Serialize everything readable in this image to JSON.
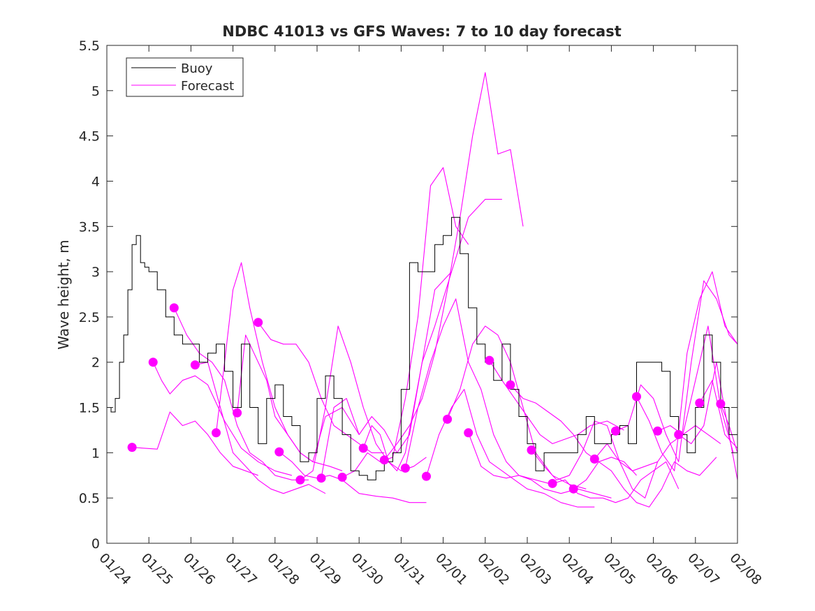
{
  "chart_data": {
    "type": "line",
    "title": "NDBC 41013 vs GFS Waves: 7 to 10 day forecast",
    "xlabel": "",
    "ylabel": "Wave height, m",
    "xlim": [
      0,
      15
    ],
    "ylim": [
      0,
      5.5
    ],
    "yticks": [
      0,
      0.5,
      1,
      1.5,
      2,
      2.5,
      3,
      3.5,
      4,
      4.5,
      5,
      5.5
    ],
    "ytick_labels": [
      "0",
      "0.5",
      "1",
      "1.5",
      "2",
      "2.5",
      "3",
      "3.5",
      "4",
      "4.5",
      "5",
      "5.5"
    ],
    "xticks": [
      0,
      1,
      2,
      3,
      4,
      5,
      6,
      7,
      8,
      9,
      10,
      11,
      12,
      13,
      14,
      15
    ],
    "xtick_labels": [
      "01/24",
      "01/25",
      "01/26",
      "01/27",
      "01/28",
      "01/29",
      "01/30",
      "01/31",
      "02/01",
      "02/02",
      "02/03",
      "02/04",
      "02/05",
      "02/06",
      "02/07",
      "02/08"
    ],
    "x_units": "days since 01/24",
    "grid": false,
    "legend": {
      "position": "top-left",
      "entries": [
        {
          "label": "Buoy",
          "color": "#000000",
          "style": "line"
        },
        {
          "label": "Forecast",
          "color": "#ff00ff",
          "style": "line"
        }
      ]
    },
    "colors": {
      "buoy": "#000000",
      "forecast": "#ff00ff"
    },
    "buoy": {
      "name": "Buoy",
      "x": [
        0,
        0.1,
        0.2,
        0.3,
        0.4,
        0.5,
        0.6,
        0.7,
        0.8,
        0.9,
        1.0,
        1.2,
        1.4,
        1.6,
        1.8,
        2.0,
        2.2,
        2.4,
        2.6,
        2.8,
        3.0,
        3.2,
        3.4,
        3.6,
        3.8,
        4.0,
        4.2,
        4.4,
        4.6,
        4.8,
        5.0,
        5.2,
        5.4,
        5.6,
        5.8,
        6.0,
        6.2,
        6.4,
        6.6,
        6.8,
        7.0,
        7.2,
        7.4,
        7.6,
        7.8,
        8.0,
        8.2,
        8.4,
        8.6,
        8.8,
        9.0,
        9.2,
        9.4,
        9.6,
        9.8,
        10.0,
        10.2,
        10.4,
        10.6,
        10.8,
        11.0,
        11.2,
        11.4,
        11.6,
        11.8,
        12.0,
        12.2,
        12.4,
        12.6,
        12.8,
        13.0,
        13.2,
        13.4,
        13.6,
        13.8,
        14.0,
        14.2,
        14.4,
        14.6,
        14.8,
        15.0
      ],
      "values": [
        1.5,
        1.45,
        1.6,
        2.0,
        2.3,
        2.8,
        3.3,
        3.4,
        3.1,
        3.05,
        3.0,
        2.8,
        2.5,
        2.3,
        2.2,
        2.2,
        2.0,
        2.1,
        2.2,
        1.9,
        1.5,
        2.2,
        1.5,
        1.1,
        1.6,
        1.75,
        1.4,
        1.3,
        0.9,
        1.0,
        1.6,
        1.85,
        1.6,
        1.2,
        0.8,
        0.75,
        0.7,
        0.8,
        0.9,
        1.0,
        1.7,
        3.1,
        3.0,
        3.0,
        3.3,
        3.4,
        3.6,
        3.2,
        2.6,
        2.2,
        2.0,
        1.8,
        2.2,
        1.7,
        1.4,
        1.1,
        0.8,
        1.0,
        1.0,
        1.0,
        1.0,
        1.2,
        1.4,
        1.1,
        1.1,
        1.2,
        1.3,
        1.1,
        2.0,
        2.0,
        2.0,
        1.9,
        1.4,
        1.2,
        1.0,
        1.5,
        2.3,
        2.0,
        1.5,
        1.2,
        1.0
      ]
    },
    "forecast_series": [
      {
        "name": "Forecast",
        "x": [
          0.6,
          0.9,
          1.2,
          1.5,
          1.8,
          2.1,
          2.4,
          2.7,
          3.0,
          3.3,
          3.6
        ],
        "values": [
          1.06,
          1.05,
          1.04,
          1.45,
          1.3,
          1.35,
          1.2,
          1.0,
          0.85,
          0.8,
          0.75
        ]
      },
      {
        "name": "Forecast",
        "x": [
          1.1,
          1.3,
          1.5,
          1.8,
          2.1,
          2.4,
          2.8,
          3.2,
          3.6,
          4.0,
          4.4
        ],
        "values": [
          2.0,
          1.8,
          1.65,
          1.8,
          1.85,
          1.75,
          1.35,
          1.05,
          0.9,
          0.8,
          0.75
        ]
      },
      {
        "name": "Forecast",
        "x": [
          1.6,
          1.9,
          2.2,
          2.5,
          2.8,
          3.1,
          3.4,
          3.7,
          4.0,
          4.4,
          4.8
        ],
        "values": [
          2.6,
          2.3,
          2.1,
          2.0,
          1.8,
          1.3,
          1.0,
          0.9,
          0.75,
          0.7,
          0.7
        ]
      },
      {
        "name": "Forecast",
        "x": [
          2.1,
          2.4,
          2.7,
          3.0,
          3.3,
          3.6,
          3.9,
          4.2,
          4.5,
          4.8,
          5.2
        ],
        "values": [
          1.97,
          2.0,
          1.5,
          1.0,
          0.85,
          0.7,
          0.6,
          0.55,
          0.6,
          0.65,
          0.55
        ]
      },
      {
        "name": "Forecast",
        "x": [
          2.6,
          2.8,
          3.0,
          3.2,
          3.4,
          3.7,
          4.0,
          4.3,
          4.6,
          4.9,
          5.3,
          5.6
        ],
        "values": [
          1.22,
          2.0,
          2.8,
          3.1,
          2.6,
          2.0,
          1.5,
          1.2,
          1.0,
          0.9,
          0.85,
          0.8
        ]
      },
      {
        "name": "Forecast",
        "x": [
          3.1,
          3.3,
          3.5,
          3.8,
          4.0,
          4.3,
          4.6,
          4.9,
          5.2,
          5.6,
          6.0
        ],
        "values": [
          1.44,
          2.3,
          2.1,
          1.8,
          1.4,
          1.2,
          1.0,
          0.9,
          1.4,
          1.5,
          1.2
        ]
      },
      {
        "name": "Forecast",
        "x": [
          3.6,
          3.9,
          4.2,
          4.5,
          4.8,
          5.1,
          5.4,
          5.7,
          6.0,
          6.3,
          6.6
        ],
        "values": [
          2.44,
          2.25,
          2.2,
          2.2,
          2.0,
          1.6,
          1.3,
          1.2,
          1.1,
          1.0,
          1.0
        ]
      },
      {
        "name": "Forecast",
        "x": [
          4.1,
          4.4,
          4.7,
          5.0,
          5.3,
          5.6,
          6.0,
          6.4,
          6.8,
          7.2,
          7.6
        ],
        "values": [
          1.01,
          0.9,
          0.75,
          0.72,
          0.75,
          0.7,
          0.55,
          0.52,
          0.5,
          0.45,
          0.45
        ]
      },
      {
        "name": "Forecast",
        "x": [
          4.6,
          4.9,
          5.2,
          5.5,
          5.8,
          6.1,
          6.4,
          6.7,
          7.0,
          7.3,
          7.6
        ],
        "values": [
          0.7,
          0.8,
          1.5,
          2.4,
          2.0,
          1.5,
          1.1,
          0.9,
          0.8,
          0.85,
          0.95
        ]
      },
      {
        "name": "Forecast",
        "x": [
          5.1,
          5.4,
          5.7,
          6.0,
          6.3,
          6.6,
          6.9,
          7.2,
          7.5,
          7.8,
          8.2
        ],
        "values": [
          0.72,
          1.5,
          1.6,
          1.2,
          1.4,
          1.25,
          1.0,
          1.2,
          2.0,
          2.8,
          3.0
        ]
      },
      {
        "name": "Forecast",
        "x": [
          5.6,
          5.9,
          6.2,
          6.5,
          6.8,
          7.1,
          7.4,
          7.7,
          8.0,
          8.3,
          8.6
        ],
        "values": [
          0.73,
          0.8,
          1.0,
          0.9,
          0.95,
          1.6,
          2.5,
          3.95,
          4.15,
          3.5,
          3.3
        ]
      },
      {
        "name": "Forecast",
        "x": [
          6.1,
          6.3,
          6.5,
          6.7,
          6.9,
          7.1,
          7.3,
          7.5,
          7.8,
          8.2,
          8.6,
          9.0,
          9.4
        ],
        "values": [
          1.05,
          1.3,
          1.2,
          0.9,
          0.8,
          1.0,
          1.5,
          2.0,
          2.4,
          3.0,
          3.6,
          3.8,
          3.8
        ]
      },
      {
        "name": "Forecast",
        "x": [
          6.6,
          6.9,
          7.2,
          7.5,
          7.8,
          8.1,
          8.4,
          8.7,
          9.0,
          9.3,
          9.6,
          9.9
        ],
        "values": [
          0.92,
          1.1,
          1.3,
          1.6,
          2.1,
          2.8,
          3.6,
          4.5,
          5.2,
          4.3,
          4.35,
          3.5
        ]
      },
      {
        "name": "Forecast",
        "x": [
          7.1,
          7.4,
          7.7,
          8.0,
          8.3,
          8.6,
          8.9,
          9.2,
          9.5,
          9.8,
          10.2,
          10.6
        ],
        "values": [
          0.83,
          1.5,
          2.0,
          2.4,
          2.7,
          2.0,
          1.7,
          1.2,
          0.9,
          0.75,
          0.7,
          0.65
        ]
      },
      {
        "name": "Forecast",
        "x": [
          7.6,
          7.9,
          8.2,
          8.5,
          8.8,
          9.1,
          9.4,
          9.7,
          10.0,
          10.4,
          10.8,
          11.2,
          11.6
        ],
        "values": [
          0.74,
          1.2,
          1.5,
          1.7,
          1.2,
          0.9,
          0.8,
          0.7,
          0.6,
          0.55,
          0.45,
          0.4,
          0.4
        ]
      },
      {
        "name": "Forecast",
        "x": [
          8.1,
          8.4,
          8.7,
          9.0,
          9.3,
          9.6,
          9.9,
          10.2,
          10.6,
          11.0,
          11.4
        ],
        "values": [
          1.37,
          1.7,
          2.2,
          2.4,
          2.3,
          2.0,
          1.5,
          1.0,
          0.75,
          0.65,
          0.6
        ]
      },
      {
        "name": "Forecast",
        "x": [
          8.6,
          8.9,
          9.2,
          9.5,
          9.8,
          10.1,
          10.4,
          10.8,
          11.2,
          11.6,
          12.0
        ],
        "values": [
          1.22,
          0.85,
          0.75,
          0.72,
          0.75,
          0.7,
          0.6,
          0.55,
          0.6,
          0.55,
          0.5
        ]
      },
      {
        "name": "Forecast",
        "x": [
          9.1,
          9.4,
          9.7,
          10.0,
          10.3,
          10.6,
          10.9,
          11.2,
          11.5,
          11.9,
          12.3
        ],
        "values": [
          2.02,
          1.8,
          1.6,
          1.4,
          1.2,
          1.1,
          1.15,
          1.2,
          1.3,
          1.35,
          1.25
        ]
      },
      {
        "name": "Forecast",
        "x": [
          9.6,
          9.9,
          10.2,
          10.5,
          10.8,
          11.1,
          11.4,
          11.7,
          12.0,
          12.3,
          12.6
        ],
        "values": [
          1.75,
          1.6,
          1.55,
          1.45,
          1.35,
          1.2,
          1.0,
          0.9,
          0.95,
          0.9,
          0.75
        ]
      },
      {
        "name": "Forecast",
        "x": [
          10.1,
          10.4,
          10.7,
          11.0,
          11.3,
          11.6,
          11.9,
          12.2,
          12.5,
          12.8,
          13.1
        ],
        "values": [
          1.03,
          0.85,
          0.7,
          0.75,
          1.0,
          1.35,
          1.3,
          0.9,
          0.8,
          0.85,
          0.9
        ]
      },
      {
        "name": "Forecast",
        "x": [
          10.6,
          10.9,
          11.2,
          11.5,
          11.8,
          12.1,
          12.4,
          12.7,
          13.0,
          13.3,
          13.6
        ],
        "values": [
          0.66,
          0.7,
          0.55,
          0.5,
          0.5,
          0.45,
          0.5,
          0.7,
          0.8,
          0.9,
          0.6
        ]
      },
      {
        "name": "Forecast",
        "x": [
          11.1,
          11.4,
          11.7,
          12.0,
          12.3,
          12.6,
          12.9,
          13.2,
          13.5,
          13.8,
          14.1,
          14.5
        ],
        "values": [
          0.6,
          0.7,
          0.9,
          0.8,
          0.6,
          0.45,
          0.4,
          0.6,
          0.9,
          0.8,
          0.75,
          0.95
        ]
      },
      {
        "name": "Forecast",
        "x": [
          11.6,
          11.9,
          12.2,
          12.5,
          12.8,
          13.1,
          13.4,
          13.7,
          14.0,
          14.3,
          14.6
        ],
        "values": [
          0.93,
          1.1,
          0.9,
          0.6,
          0.5,
          0.9,
          1.1,
          1.2,
          1.3,
          1.2,
          1.1
        ]
      },
      {
        "name": "Forecast",
        "x": [
          12.1,
          12.4,
          12.7,
          13.0,
          13.3,
          13.6,
          13.9,
          14.2,
          14.5,
          14.8,
          15.0
        ],
        "values": [
          1.24,
          1.3,
          1.75,
          1.6,
          1.2,
          0.9,
          2.0,
          2.9,
          2.7,
          2.3,
          2.2
        ]
      },
      {
        "name": "Forecast",
        "x": [
          12.6,
          12.9,
          13.2,
          13.5,
          13.8,
          14.1,
          14.4,
          14.7,
          15.0
        ],
        "values": [
          1.62,
          1.35,
          1.0,
          0.8,
          2.1,
          2.7,
          3.0,
          2.4,
          2.2
        ]
      },
      {
        "name": "Forecast",
        "x": [
          13.1,
          13.4,
          13.7,
          14.0,
          14.3,
          14.6,
          14.9
        ],
        "values": [
          1.24,
          1.3,
          1.2,
          1.8,
          2.4,
          1.5,
          1.0
        ]
      },
      {
        "name": "Forecast",
        "x": [
          13.6,
          13.9,
          14.2,
          14.5,
          14.8,
          15.0
        ],
        "values": [
          1.2,
          1.1,
          1.3,
          2.0,
          1.2,
          0.7
        ]
      },
      {
        "name": "Forecast",
        "x": [
          14.1,
          14.4,
          14.7,
          15.0
        ],
        "values": [
          1.55,
          1.8,
          1.2,
          1.05
        ]
      },
      {
        "name": "Forecast",
        "x": [
          14.6,
          14.8,
          15.0
        ],
        "values": [
          1.54,
          1.3,
          1.0
        ]
      }
    ],
    "forecast_start_markers": {
      "name": "Forecast start",
      "x": [
        0.6,
        1.1,
        1.6,
        2.1,
        2.6,
        3.1,
        3.6,
        4.1,
        4.6,
        5.1,
        5.6,
        6.1,
        6.6,
        7.1,
        7.6,
        8.1,
        8.6,
        9.1,
        9.6,
        10.1,
        10.6,
        11.1,
        11.6,
        12.1,
        12.6,
        13.1,
        13.6,
        14.1,
        14.6
      ],
      "values": [
        1.06,
        2.0,
        2.6,
        1.97,
        1.22,
        1.44,
        2.44,
        1.01,
        0.7,
        0.72,
        0.73,
        1.05,
        0.92,
        0.83,
        0.74,
        1.37,
        1.22,
        2.02,
        1.75,
        1.03,
        0.66,
        0.6,
        0.93,
        1.24,
        1.62,
        1.24,
        1.2,
        1.55,
        1.54
      ]
    }
  }
}
